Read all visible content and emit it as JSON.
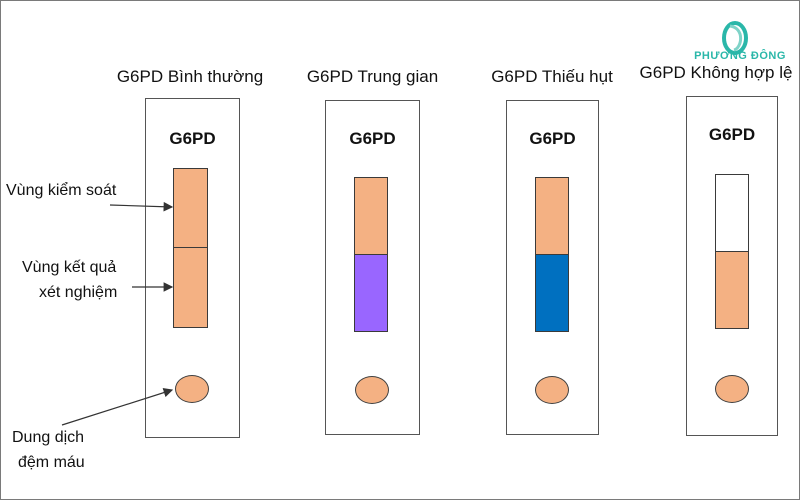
{
  "columns": [
    {
      "title": "G6PD Bình thường",
      "card_label": "G6PD",
      "top_color": "#f4b183",
      "bottom_color": "#f4b183"
    },
    {
      "title": "G6PD Trung gian",
      "card_label": "G6PD",
      "top_color": "#f4b183",
      "bottom_color": "#9966ff"
    },
    {
      "title": "G6PD Thiếu hụt",
      "card_label": "G6PD",
      "top_color": "#f4b183",
      "bottom_color": "#0070c0"
    },
    {
      "title": "G6PD Không hợp lệ",
      "card_label": "G6PD",
      "top_color": "#ffffff",
      "bottom_color": "#f4b183"
    }
  ],
  "annotations": {
    "control_zone": "Vùng kiểm soát",
    "result_zone_line1": "Vùng kết quả",
    "result_zone_line2": "xét nghiệm",
    "buffer_line1": "Dung dịch",
    "buffer_line2": "đệm máu"
  },
  "logo": {
    "text": "PHƯƠNG ĐÔNG",
    "color": "#2ab7a9"
  },
  "colors": {
    "well": "#f4b183",
    "border": "#555555"
  }
}
